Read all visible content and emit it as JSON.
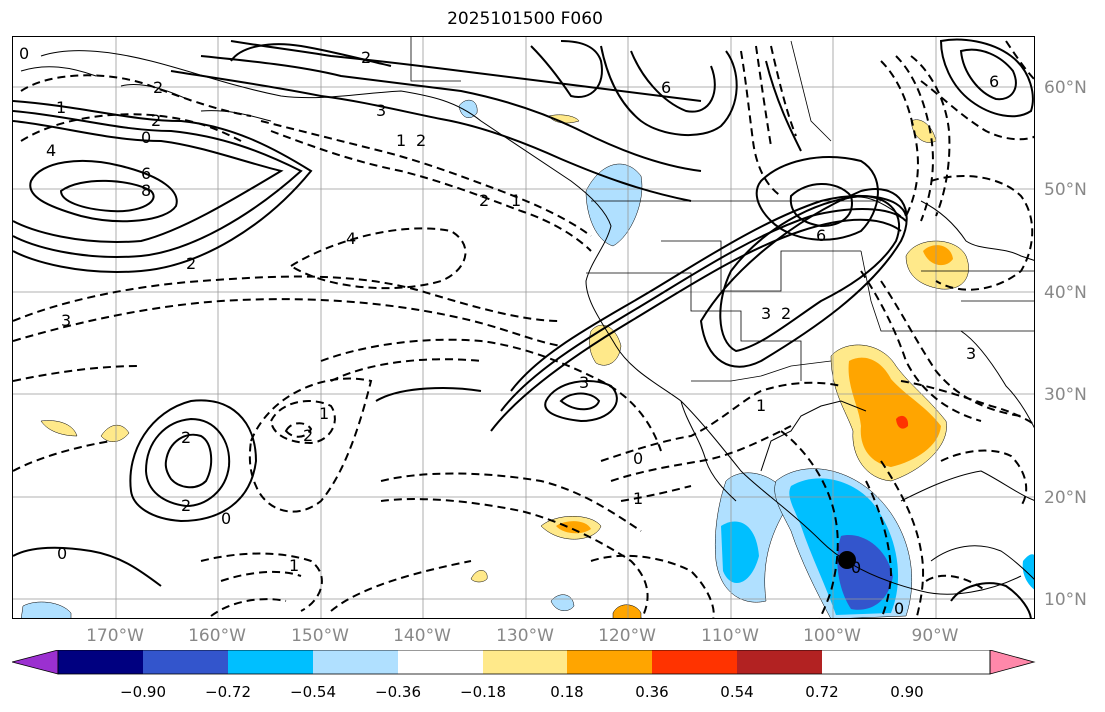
{
  "title": "2025101500 F060",
  "lon_labels": [
    "170°W",
    "160°W",
    "150°W",
    "140°W",
    "130°W",
    "120°W",
    "110°W",
    "100°W",
    "90°W"
  ],
  "lat_labels": [
    "60°N",
    "50°N",
    "40°N",
    "30°N",
    "20°N",
    "10°N"
  ],
  "colorbar": {
    "tick_labels": [
      "−0.90",
      "−0.72",
      "−0.54",
      "−0.36",
      "−0.18",
      "0.18",
      "0.36",
      "0.54",
      "0.72",
      "0.90"
    ],
    "colors": [
      "#9b30d0",
      "#000080",
      "#3355cc",
      "#00bfff",
      "#b0e0ff",
      "#ffffff",
      "#ffe98a",
      "#ffa500",
      "#ff3300",
      "#b22222",
      "#ff88aa"
    ]
  },
  "contour_labels": [
    "0",
    "2",
    "3",
    "6",
    "1",
    "2",
    "4",
    "6",
    "8",
    "0",
    "1",
    "2",
    "2",
    "4",
    "3",
    "2",
    "1",
    "2",
    "3",
    "6",
    "6",
    "3",
    "2",
    "0",
    "1",
    "3",
    "2",
    "0",
    "0",
    "0",
    "1",
    "2",
    "1",
    "2",
    "0",
    "1"
  ],
  "marker": "filled-circle"
}
